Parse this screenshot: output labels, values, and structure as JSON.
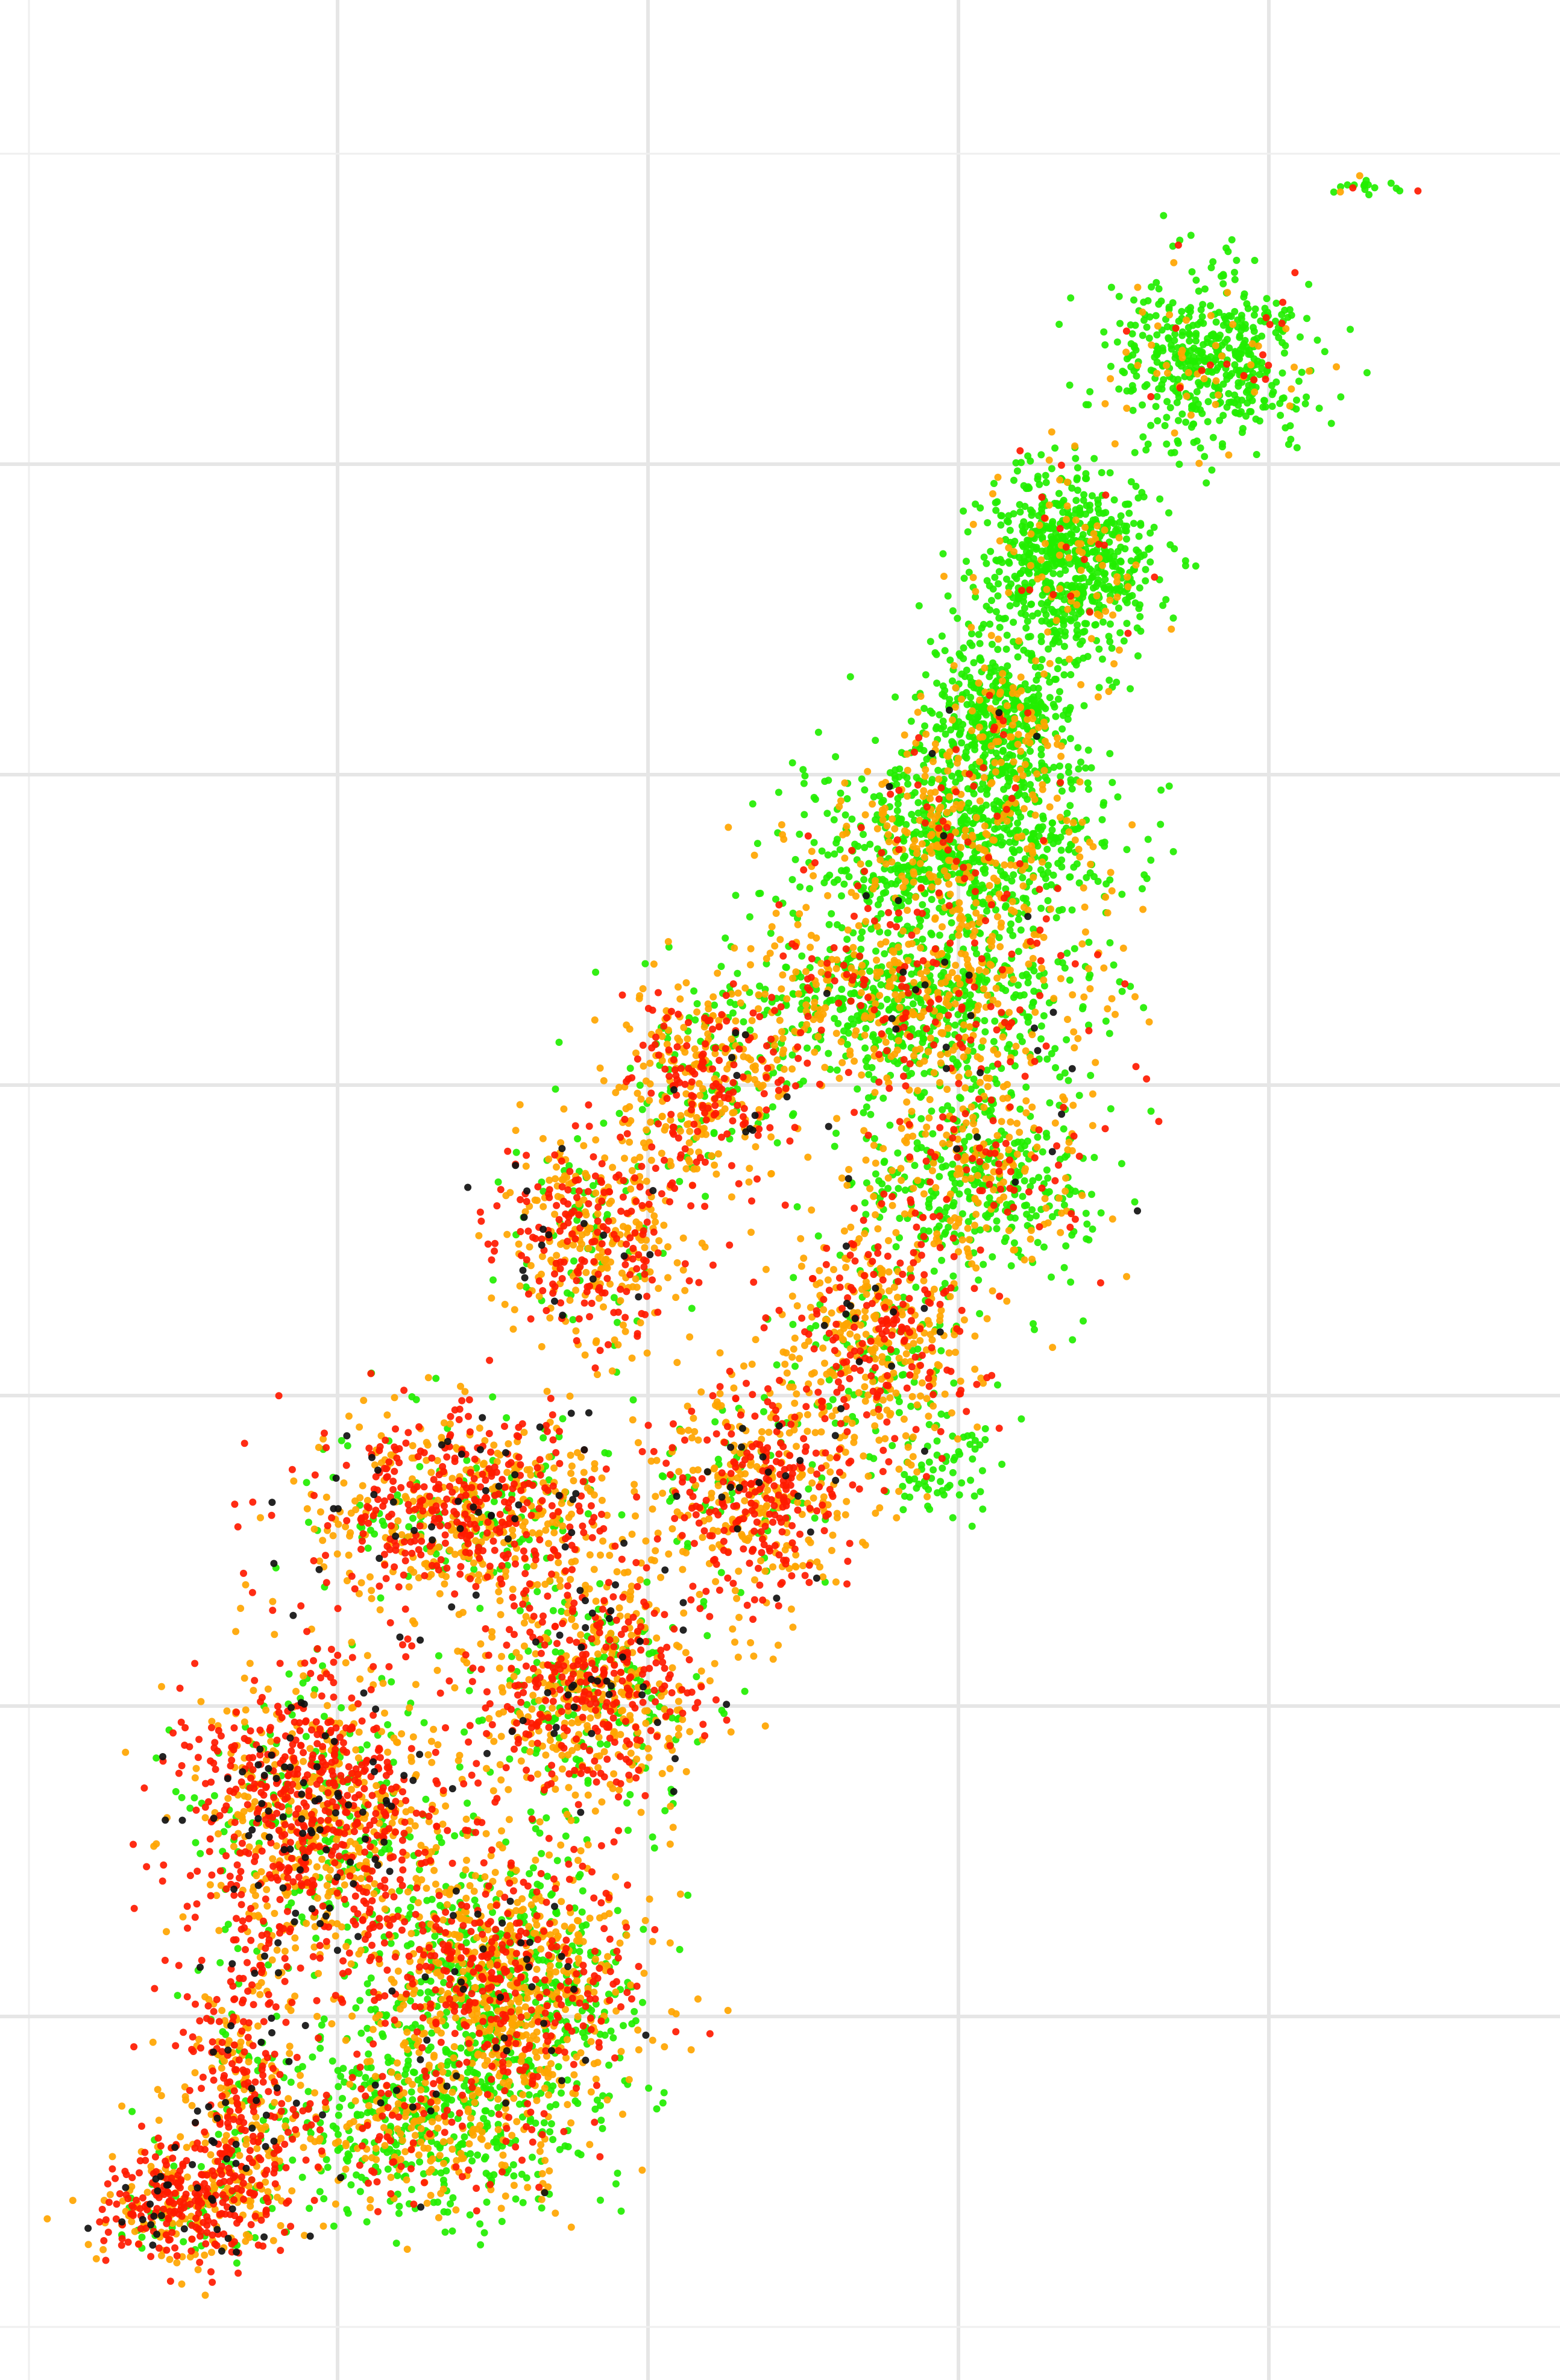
{
  "chart_data": {
    "type": "scatter",
    "title": "",
    "xlabel": "",
    "ylabel": "",
    "grid": true,
    "legend": "none",
    "axes_visible": false,
    "xlim": [
      0,
      100
    ],
    "ylim": [
      0,
      100
    ],
    "point_count_per_category": {
      "green": 5200,
      "orange": 4200,
      "red": 4100,
      "black": 260
    },
    "series": [
      {
        "key": "green",
        "color": "#22ee00"
      },
      {
        "key": "orange",
        "color": "#ffa500"
      },
      {
        "key": "red",
        "color": "#ff1a00"
      },
      {
        "key": "black",
        "color": "#111111"
      }
    ],
    "regions": [
      {
        "x": 93.0,
        "y": 97.5,
        "sx": 1.2,
        "sy": 0.3,
        "n": 18,
        "mix": [
          0.82,
          0.08,
          0.08,
          0.02
        ]
      },
      {
        "x": 82.0,
        "y": 89.5,
        "sx": 3.4,
        "sy": 1.9,
        "n": 520,
        "mix": [
          0.86,
          0.11,
          0.03,
          0.0
        ]
      },
      {
        "x": 72.0,
        "y": 80.0,
        "sx": 3.1,
        "sy": 2.3,
        "n": 750,
        "mix": [
          0.88,
          0.1,
          0.02,
          0.0
        ]
      },
      {
        "x": 67.0,
        "y": 72.5,
        "sx": 2.6,
        "sy": 1.9,
        "n": 520,
        "mix": [
          0.8,
          0.16,
          0.03,
          0.01
        ]
      },
      {
        "x": 64.5,
        "y": 66.5,
        "sx": 5.0,
        "sy": 2.4,
        "n": 1050,
        "mix": [
          0.7,
          0.23,
          0.06,
          0.01
        ]
      },
      {
        "x": 61.0,
        "y": 59.5,
        "sx": 6.0,
        "sy": 2.0,
        "n": 950,
        "mix": [
          0.55,
          0.3,
          0.13,
          0.02
        ]
      },
      {
        "x": 66.0,
        "y": 51.5,
        "sx": 4.2,
        "sy": 2.4,
        "n": 600,
        "mix": [
          0.6,
          0.28,
          0.11,
          0.01
        ]
      },
      {
        "x": 47.0,
        "y": 55.5,
        "sx": 3.0,
        "sy": 2.3,
        "n": 450,
        "mix": [
          0.22,
          0.45,
          0.3,
          0.03
        ]
      },
      {
        "x": 39.0,
        "y": 48.5,
        "sx": 3.0,
        "sy": 2.4,
        "n": 500,
        "mix": [
          0.12,
          0.47,
          0.36,
          0.05
        ]
      },
      {
        "x": 59.0,
        "y": 44.0,
        "sx": 3.5,
        "sy": 2.6,
        "n": 560,
        "mix": [
          0.15,
          0.48,
          0.34,
          0.03
        ]
      },
      {
        "x": 50.5,
        "y": 36.5,
        "sx": 3.2,
        "sy": 2.6,
        "n": 560,
        "mix": [
          0.12,
          0.45,
          0.38,
          0.05
        ]
      },
      {
        "x": 63.0,
        "y": 37.5,
        "sx": 1.8,
        "sy": 1.5,
        "n": 70,
        "mix": [
          0.92,
          0.06,
          0.02,
          0.0
        ]
      },
      {
        "x": 30.0,
        "y": 36.0,
        "sx": 5.2,
        "sy": 2.2,
        "n": 880,
        "mix": [
          0.15,
          0.4,
          0.4,
          0.05
        ]
      },
      {
        "x": 39.0,
        "y": 27.5,
        "sx": 4.0,
        "sy": 2.6,
        "n": 820,
        "mix": [
          0.18,
          0.44,
          0.34,
          0.04
        ]
      },
      {
        "x": 20.0,
        "y": 21.5,
        "sx": 4.6,
        "sy": 3.6,
        "n": 1250,
        "mix": [
          0.14,
          0.38,
          0.42,
          0.06
        ]
      },
      {
        "x": 33.0,
        "y": 13.5,
        "sx": 4.6,
        "sy": 3.2,
        "n": 1350,
        "mix": [
          0.38,
          0.36,
          0.23,
          0.03
        ]
      },
      {
        "x": 15.0,
        "y": 9.5,
        "sx": 2.2,
        "sy": 3.2,
        "n": 380,
        "mix": [
          0.12,
          0.3,
          0.5,
          0.08
        ]
      },
      {
        "x": 10.5,
        "y": 3.5,
        "sx": 3.2,
        "sy": 1.4,
        "n": 430,
        "mix": [
          0.1,
          0.32,
          0.52,
          0.06
        ]
      },
      {
        "x": 27.0,
        "y": 7.0,
        "sx": 5.5,
        "sy": 2.2,
        "n": 650,
        "mix": [
          0.55,
          0.3,
          0.13,
          0.02
        ]
      }
    ]
  }
}
